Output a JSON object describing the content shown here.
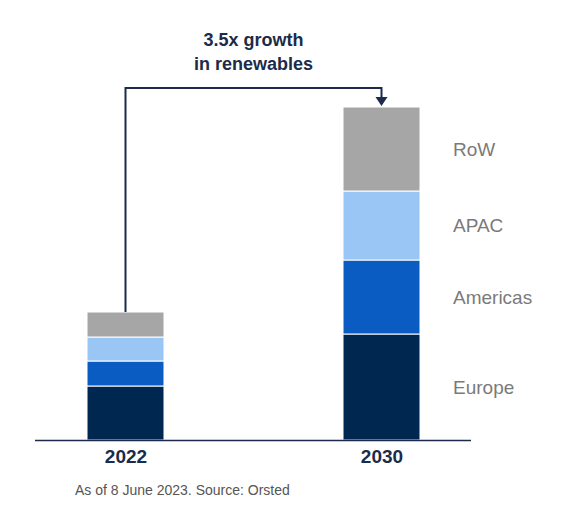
{
  "chart_data": {
    "type": "bar",
    "stacked": true,
    "categories": [
      "2022",
      "2030"
    ],
    "series": [
      {
        "name": "Europe",
        "color": "#00274f",
        "values": [
          54,
          106
        ]
      },
      {
        "name": "Americas",
        "color": "#0a5cc2",
        "values": [
          25,
          74
        ]
      },
      {
        "name": "APAC",
        "color": "#99c6f5",
        "values": [
          24,
          69
        ]
      },
      {
        "name": "RoW",
        "color": "#a6a6a6",
        "values": [
          25,
          84
        ]
      }
    ],
    "ylim": [
      0,
      333
    ],
    "tick_labels": "x",
    "legend": "right",
    "annotation": {
      "text": [
        "3.5x growth",
        "in renewables"
      ],
      "from": "2022",
      "to": "2030"
    },
    "caption": "As of 8 June 2023. Source: Orsted"
  }
}
